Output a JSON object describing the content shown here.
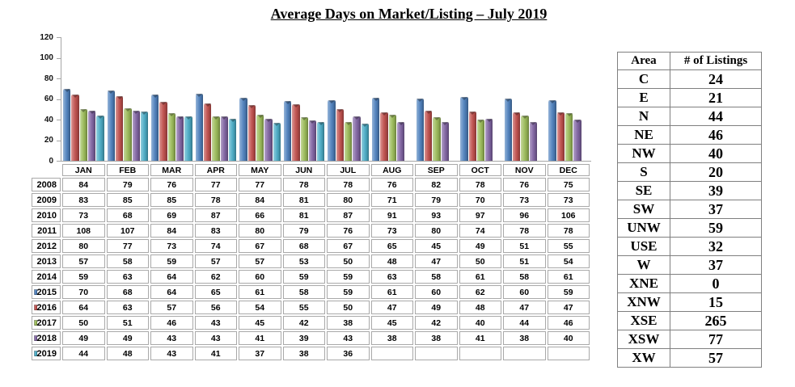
{
  "title": "Average Days on Market/Listing – July 2019",
  "chart_data": {
    "type": "bar",
    "title": "Average Days on Market/Listing – July 2019",
    "xlabel": "",
    "ylabel": "",
    "ylim": [
      0,
      120
    ],
    "yticks": [
      0,
      20,
      40,
      60,
      80,
      100,
      120
    ],
    "grid": false,
    "legend_position": "data-table-keys",
    "categories": [
      "JAN",
      "FEB",
      "MAR",
      "APR",
      "MAY",
      "JUN",
      "JUL",
      "AUG",
      "SEP",
      "OCT",
      "NOV",
      "DEC"
    ],
    "series": [
      {
        "name": "2008",
        "plotted": false,
        "key_color": null,
        "values": [
          84,
          79,
          76,
          77,
          77,
          78,
          78,
          76,
          82,
          78,
          76,
          75
        ]
      },
      {
        "name": "2009",
        "plotted": false,
        "key_color": null,
        "values": [
          83,
          85,
          85,
          78,
          84,
          81,
          80,
          71,
          79,
          70,
          73,
          73
        ]
      },
      {
        "name": "2010",
        "plotted": false,
        "key_color": null,
        "values": [
          73,
          68,
          69,
          87,
          66,
          81,
          87,
          91,
          93,
          97,
          96,
          106
        ]
      },
      {
        "name": "2011",
        "plotted": false,
        "key_color": null,
        "values": [
          108,
          107,
          84,
          83,
          80,
          79,
          76,
          73,
          80,
          74,
          78,
          78
        ]
      },
      {
        "name": "2012",
        "plotted": false,
        "key_color": null,
        "values": [
          80,
          77,
          73,
          74,
          67,
          68,
          67,
          65,
          45,
          49,
          51,
          55
        ]
      },
      {
        "name": "2013",
        "plotted": false,
        "key_color": null,
        "values": [
          57,
          58,
          59,
          57,
          57,
          53,
          50,
          48,
          47,
          50,
          51,
          54
        ]
      },
      {
        "name": "2014",
        "plotted": false,
        "key_color": null,
        "values": [
          59,
          63,
          64,
          62,
          60,
          59,
          59,
          63,
          58,
          61,
          58,
          61
        ]
      },
      {
        "name": "2015",
        "plotted": true,
        "key_color": "#4F81BD",
        "values": [
          70,
          68,
          64,
          65,
          61,
          58,
          59,
          61,
          60,
          62,
          60,
          59
        ]
      },
      {
        "name": "2016",
        "plotted": true,
        "key_color": "#C0504D",
        "values": [
          64,
          63,
          57,
          56,
          54,
          55,
          50,
          47,
          49,
          48,
          47,
          47
        ]
      },
      {
        "name": "2017",
        "plotted": true,
        "key_color": "#9BBB59",
        "values": [
          50,
          51,
          46,
          43,
          45,
          42,
          38,
          45,
          42,
          40,
          44,
          46
        ]
      },
      {
        "name": "2018",
        "plotted": true,
        "key_color": "#8064A2",
        "values": [
          49,
          49,
          43,
          43,
          41,
          39,
          43,
          38,
          38,
          41,
          38,
          40
        ]
      },
      {
        "name": "2019",
        "plotted": true,
        "key_color": "#4BACC6",
        "values": [
          44,
          48,
          43,
          41,
          37,
          38,
          36,
          null,
          null,
          null,
          null,
          null
        ]
      }
    ]
  },
  "listings_table": {
    "headers": [
      "Area",
      "# of Listings"
    ],
    "rows": [
      {
        "area": "C",
        "listings": "24"
      },
      {
        "area": "E",
        "listings": "21"
      },
      {
        "area": "N",
        "listings": "44"
      },
      {
        "area": "NE",
        "listings": "46"
      },
      {
        "area": "NW",
        "listings": "40"
      },
      {
        "area": "S",
        "listings": "20"
      },
      {
        "area": "SE",
        "listings": "39"
      },
      {
        "area": "SW",
        "listings": "37"
      },
      {
        "area": "UNW",
        "listings": "59"
      },
      {
        "area": "USE",
        "listings": "32"
      },
      {
        "area": "W",
        "listings": "37"
      },
      {
        "area": "XNE",
        "listings": "0"
      },
      {
        "area": "XNW",
        "listings": "15"
      },
      {
        "area": "XSE",
        "listings": "265"
      },
      {
        "area": "XSW",
        "listings": "77"
      },
      {
        "area": "XW",
        "listings": "57"
      }
    ]
  }
}
